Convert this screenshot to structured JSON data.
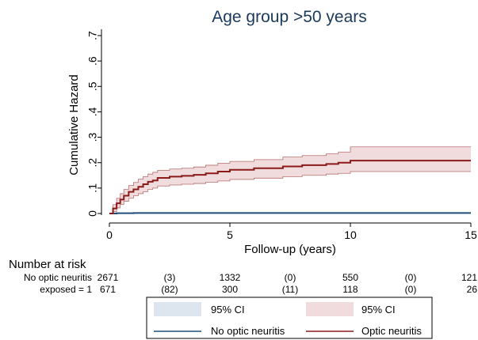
{
  "chart_data": {
    "type": "line",
    "title": "Age group >50 years",
    "xlabel": "Follow-up (years)",
    "ylabel": "Cumulative Hazard",
    "xlim": [
      0,
      15
    ],
    "ylim": [
      0,
      0.7
    ],
    "xticks": [
      {
        "value": 0,
        "label": "0"
      },
      {
        "value": 5,
        "label": "5"
      },
      {
        "value": 10,
        "label": "10"
      },
      {
        "value": 15,
        "label": "15"
      }
    ],
    "yticks": [
      {
        "value": 0,
        "label": "0"
      },
      {
        "value": 0.1,
        "label": ".1"
      },
      {
        "value": 0.2,
        "label": ".2"
      },
      {
        "value": 0.3,
        "label": ".3"
      },
      {
        "value": 0.4,
        "label": ".4"
      },
      {
        "value": 0.5,
        "label": ".5"
      },
      {
        "value": 0.6,
        "label": ".6"
      },
      {
        "value": 0.7,
        "label": ".7"
      }
    ],
    "grid": false,
    "legend_position": "bottom",
    "series": [
      {
        "name": "No optic neuritis",
        "color": "#1f4e79",
        "ci_label": "95% CI",
        "ci_color": "#dde5ee",
        "x": [
          0,
          0.3,
          1,
          3,
          6,
          9,
          12,
          15
        ],
        "y": [
          0,
          0.001,
          0.002,
          0.002,
          0.002,
          0.002,
          0.002,
          0.002
        ],
        "lower": [
          0,
          0,
          0.001,
          0.001,
          0.001,
          0.001,
          0.001,
          0.001
        ],
        "upper": [
          0,
          0.002,
          0.003,
          0.003,
          0.003,
          0.003,
          0.003,
          0.003
        ]
      },
      {
        "name": "Optic neuritis",
        "color": "#8b1a1a",
        "ci_label": "95% CI",
        "ci_color": "#f0dcdc",
        "x": [
          0,
          0.15,
          0.3,
          0.45,
          0.6,
          0.8,
          1.0,
          1.2,
          1.4,
          1.6,
          1.8,
          2.0,
          2.5,
          3.0,
          3.5,
          4.0,
          4.5,
          5.0,
          6.0,
          7.2,
          8.0,
          9.0,
          9.5,
          10.0,
          12.0,
          15.0
        ],
        "y": [
          0,
          0.02,
          0.04,
          0.055,
          0.07,
          0.085,
          0.095,
          0.105,
          0.115,
          0.125,
          0.13,
          0.14,
          0.145,
          0.148,
          0.152,
          0.158,
          0.165,
          0.172,
          0.178,
          0.185,
          0.19,
          0.195,
          0.2,
          0.208,
          0.208,
          0.208
        ],
        "lower": [
          0,
          0.008,
          0.022,
          0.035,
          0.048,
          0.06,
          0.07,
          0.078,
          0.086,
          0.095,
          0.1,
          0.108,
          0.112,
          0.115,
          0.118,
          0.123,
          0.128,
          0.134,
          0.139,
          0.145,
          0.15,
          0.155,
          0.158,
          0.165,
          0.165,
          0.165
        ],
        "upper": [
          0,
          0.035,
          0.06,
          0.078,
          0.095,
          0.11,
          0.122,
          0.135,
          0.145,
          0.155,
          0.162,
          0.17,
          0.175,
          0.178,
          0.183,
          0.19,
          0.198,
          0.205,
          0.212,
          0.222,
          0.228,
          0.235,
          0.242,
          0.262,
          0.262,
          0.262
        ]
      }
    ],
    "risk_table": {
      "title": "Number at risk",
      "times": [
        0,
        2.5,
        5,
        7.5,
        10,
        12.5,
        15
      ],
      "rows": [
        {
          "label": "No optic neuritis",
          "values": [
            "2671",
            "(3)",
            "1332",
            "(0)",
            "550",
            "(0)",
            "121"
          ]
        },
        {
          "label": "exposed = 1",
          "values": [
            "671",
            "(82)",
            "300",
            "(11)",
            "118",
            "(0)",
            "26"
          ]
        }
      ]
    }
  }
}
